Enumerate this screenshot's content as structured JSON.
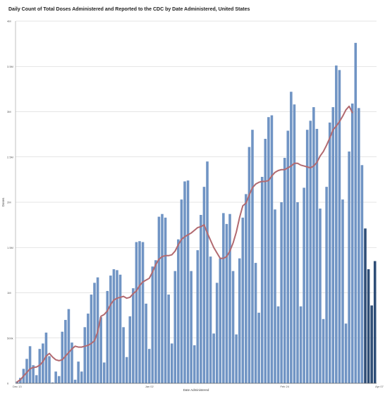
{
  "title": "Daily Count of Total Doses Administered and Reported to the CDC by Date Administered, United States",
  "chart_data": {
    "type": "bar",
    "xlabel": "Date Administered",
    "ylabel": "Doses",
    "ylim": [
      0,
      4000000
    ],
    "y_ticks": [
      0,
      500000,
      1000000,
      1500000,
      2000000,
      2500000,
      3000000,
      3500000,
      4000000
    ],
    "y_tick_labels": [
      "0",
      "500k",
      "1M",
      "1.5M",
      "2M",
      "2.5M",
      "3M",
      "3.5M",
      "4M"
    ],
    "x_tick_labels": [
      {
        "label": "Dec 13",
        "index": 0
      },
      {
        "label": "Jan 02",
        "index": 41
      },
      {
        "label": "Feb 24",
        "index": 83
      },
      {
        "label": "Apr 07",
        "index": 125
      }
    ],
    "grid": true,
    "colors": {
      "bar": "#7094c4",
      "bar_recent": "#2e4d76",
      "line": "#b26a70",
      "grid": "#cccccc"
    },
    "values": [
      20000,
      60000,
      160000,
      270000,
      410000,
      200000,
      90000,
      380000,
      440000,
      560000,
      300000,
      10000,
      130000,
      80000,
      570000,
      700000,
      820000,
      450000,
      40000,
      240000,
      130000,
      620000,
      770000,
      980000,
      1110000,
      1170000,
      730000,
      230000,
      1020000,
      1190000,
      1260000,
      1250000,
      1200000,
      620000,
      290000,
      740000,
      1050000,
      1560000,
      1570000,
      1560000,
      880000,
      380000,
      1290000,
      1360000,
      1840000,
      1870000,
      1830000,
      980000,
      440000,
      1240000,
      1590000,
      2030000,
      2230000,
      2240000,
      1240000,
      420000,
      1470000,
      1860000,
      2170000,
      2450000,
      1400000,
      550000,
      1110000,
      1380000,
      1880000,
      1760000,
      1870000,
      1240000,
      540000,
      1380000,
      1830000,
      2090000,
      2610000,
      2800000,
      1330000,
      780000,
      2280000,
      2700000,
      2940000,
      2960000,
      1920000,
      850000,
      2000000,
      2490000,
      2790000,
      3220000,
      3080000,
      2000000,
      850000,
      2160000,
      2800000,
      2900000,
      3050000,
      2810000,
      1930000,
      710000,
      2170000,
      2880000,
      3050000,
      3510000,
      3460000,
      2030000,
      660000,
      2560000,
      3090000,
      3760000,
      3040000,
      2410000,
      1710000,
      1260000,
      860000,
      1350000
    ],
    "recent_from_index": 108,
    "moving_average": [
      15000,
      40000,
      80000,
      120000,
      160000,
      175000,
      180000,
      200000,
      240000,
      300000,
      330000,
      290000,
      260000,
      250000,
      260000,
      300000,
      340000,
      380000,
      410000,
      400000,
      400000,
      410000,
      420000,
      440000,
      470000,
      570000,
      740000,
      760000,
      800000,
      870000,
      920000,
      940000,
      950000,
      960000,
      940000,
      950000,
      990000,
      1020000,
      1080000,
      1120000,
      1140000,
      1160000,
      1230000,
      1310000,
      1370000,
      1400000,
      1410000,
      1410000,
      1420000,
      1460000,
      1530000,
      1590000,
      1620000,
      1640000,
      1660000,
      1690000,
      1720000,
      1730000,
      1750000,
      1660000,
      1580000,
      1500000,
      1440000,
      1380000,
      1380000,
      1400000,
      1460000,
      1550000,
      1670000,
      1830000,
      1960000,
      1990000,
      2080000,
      2160000,
      2200000,
      2220000,
      2230000,
      2230000,
      2240000,
      2290000,
      2330000,
      2350000,
      2360000,
      2360000,
      2380000,
      2400000,
      2430000,
      2430000,
      2410000,
      2400000,
      2390000,
      2380000,
      2400000,
      2440000,
      2510000,
      2560000,
      2630000,
      2710000,
      2800000,
      2840000,
      2890000,
      2950000,
      3020000,
      3060000,
      2990000
    ]
  }
}
